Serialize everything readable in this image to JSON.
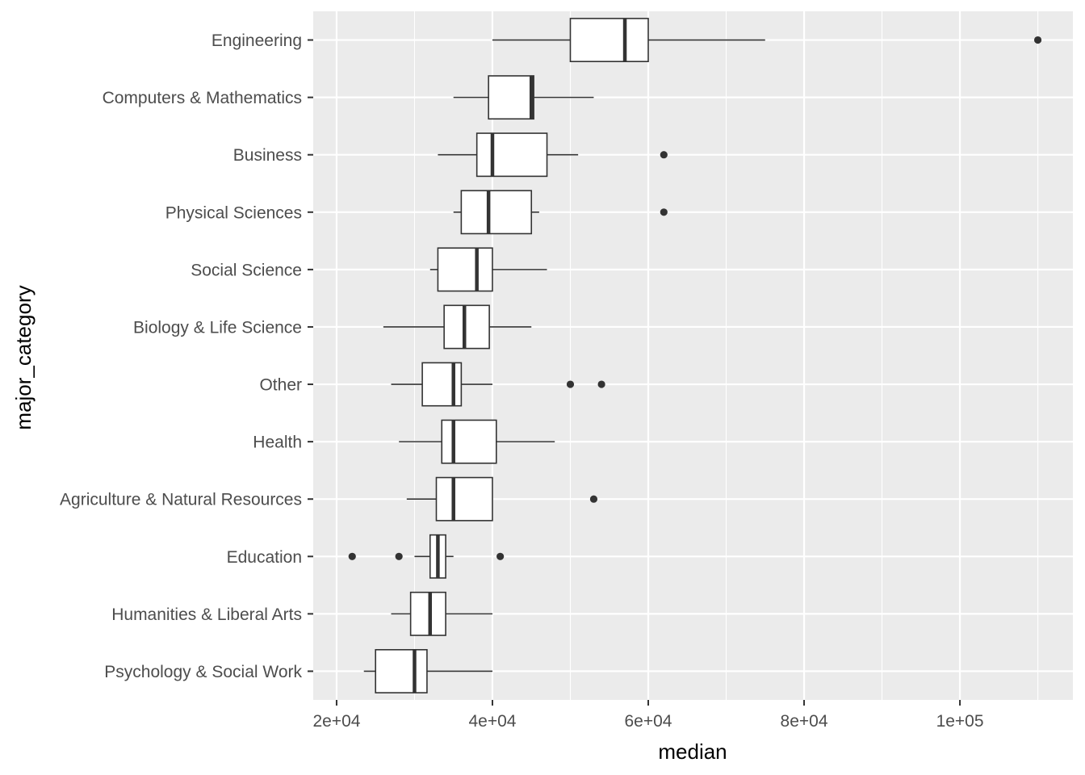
{
  "chart_data": {
    "type": "boxplot",
    "orientation": "horizontal",
    "xlabel": "median",
    "ylabel": "major_category",
    "xlim": [
      17000,
      114500
    ],
    "x_ticks": [
      20000,
      40000,
      60000,
      80000,
      100000
    ],
    "x_tick_labels": [
      "2e+04",
      "4e+04",
      "6e+04",
      "8e+04",
      "1e+05"
    ],
    "x_minor_ticks": [
      30000,
      50000,
      70000,
      90000,
      110000
    ],
    "grid": true,
    "legend": "none",
    "colors": {
      "panel_background": "#ebebeb",
      "grid": "#ffffff",
      "box_fill": "#ffffff",
      "box_line": "#333333",
      "tick_text": "#4d4d4d",
      "axis_title": "#000000"
    },
    "categories": [
      "Engineering",
      "Computers & Mathematics",
      "Business",
      "Physical Sciences",
      "Social Science",
      "Biology & Life Science",
      "Other",
      "Health",
      "Agriculture & Natural Resources",
      "Education",
      "Humanities & Liberal Arts",
      "Psychology & Social Work"
    ],
    "boxes": [
      {
        "category": "Engineering",
        "whisker_low": 40000,
        "q1": 50000,
        "median": 57000,
        "q3": 60000,
        "whisker_high": 75000,
        "outliers": [
          110000
        ]
      },
      {
        "category": "Computers & Mathematics",
        "whisker_low": 35000,
        "q1": 39500,
        "median": 45000,
        "q3": 45300,
        "whisker_high": 53000,
        "outliers": []
      },
      {
        "category": "Business",
        "whisker_low": 33000,
        "q1": 38000,
        "median": 40000,
        "q3": 47000,
        "whisker_high": 51000,
        "outliers": [
          62000
        ]
      },
      {
        "category": "Physical Sciences",
        "whisker_low": 35000,
        "q1": 36000,
        "median": 39500,
        "q3": 45000,
        "whisker_high": 46000,
        "outliers": [
          62000
        ]
      },
      {
        "category": "Social Science",
        "whisker_low": 32000,
        "q1": 33000,
        "median": 38000,
        "q3": 40000,
        "whisker_high": 47000,
        "outliers": []
      },
      {
        "category": "Biology & Life Science",
        "whisker_low": 26000,
        "q1": 33800,
        "median": 36400,
        "q3": 39600,
        "whisker_high": 45000,
        "outliers": []
      },
      {
        "category": "Other",
        "whisker_low": 27000,
        "q1": 31000,
        "median": 35000,
        "q3": 36000,
        "whisker_high": 40000,
        "outliers": [
          50000,
          54000
        ]
      },
      {
        "category": "Health",
        "whisker_low": 28000,
        "q1": 33500,
        "median": 35000,
        "q3": 40500,
        "whisker_high": 48000,
        "outliers": []
      },
      {
        "category": "Agriculture & Natural Resources",
        "whisker_low": 29000,
        "q1": 32800,
        "median": 35000,
        "q3": 40000,
        "whisker_high": 40000,
        "outliers": [
          53000
        ]
      },
      {
        "category": "Education",
        "whisker_low": 30000,
        "q1": 32000,
        "median": 33000,
        "q3": 34000,
        "whisker_high": 35000,
        "outliers": [
          22000,
          28000,
          41000
        ]
      },
      {
        "category": "Humanities & Liberal Arts",
        "whisker_low": 27000,
        "q1": 29500,
        "median": 32000,
        "q3": 34000,
        "whisker_high": 40000,
        "outliers": []
      },
      {
        "category": "Psychology & Social Work",
        "whisker_low": 23500,
        "q1": 25000,
        "median": 30000,
        "q3": 31600,
        "whisker_high": 40000,
        "outliers": []
      }
    ]
  }
}
